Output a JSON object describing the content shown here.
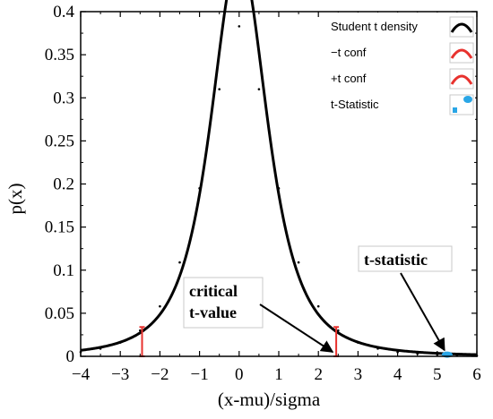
{
  "chart_data": {
    "type": "line",
    "title": "",
    "xlabel": "(x-mu)/sigma",
    "ylabel": "p(x)",
    "xlim": [
      -4,
      6
    ],
    "ylim": [
      0,
      0.4
    ],
    "grid": false,
    "xticks": [
      -4,
      -3,
      -2,
      -1,
      0,
      1,
      2,
      3,
      4,
      5,
      6
    ],
    "xtick_labels": [
      "−4",
      "−3",
      "−2",
      "−1",
      "0",
      "1",
      "2",
      "3",
      "4",
      "5",
      "6"
    ],
    "yticks": [
      0,
      0.05,
      0.1,
      0.15,
      0.2,
      0.25,
      0.3,
      0.35,
      0.4
    ],
    "ytick_labels": [
      "0",
      "0.05",
      "0.1",
      "0.15",
      "0.2",
      "0.25",
      "0.3",
      "0.35",
      "0.4"
    ],
    "series": [
      {
        "name": "Student t  density",
        "color": "#000000",
        "x": [
          -4,
          -3.5,
          -3,
          -2.5,
          -2,
          -1.5,
          -1,
          -0.5,
          0,
          0.5,
          1,
          1.5,
          2,
          2.5,
          3,
          3.5,
          4,
          4.5,
          5,
          5.5,
          6
        ],
        "y": [
          0.005,
          0.009,
          0.016,
          0.03,
          0.058,
          0.109,
          0.195,
          0.31,
          0.383,
          0.31,
          0.195,
          0.109,
          0.058,
          0.03,
          0.016,
          0.009,
          0.005,
          0.003,
          0.002,
          0.001,
          0.0007
        ]
      }
    ],
    "critical_lines": [
      {
        "name": "−t conf",
        "x": -2.45,
        "y": 0.034,
        "color": "#e8322e"
      },
      {
        "name": "+t conf",
        "x": 2.45,
        "y": 0.034,
        "color": "#e8322e"
      }
    ],
    "points": [
      {
        "name": "t-Statistic",
        "x": 5.25,
        "y": 0.002,
        "color": "#2aa6e6"
      }
    ],
    "legend": {
      "position": "top-right",
      "entries": [
        {
          "label": "Student t  density",
          "color": "#000000",
          "kind": "line"
        },
        {
          "label": "−t conf",
          "color": "#e8322e",
          "kind": "line"
        },
        {
          "label": "+t conf",
          "color": "#e8322e",
          "kind": "line"
        },
        {
          "label": "t-Statistic",
          "color": "#2aa6e6",
          "kind": "marker"
        }
      ]
    },
    "annotations": [
      {
        "lines": [
          "critical",
          "t-value"
        ],
        "target_x": 2.45,
        "target_y": 0.003
      },
      {
        "lines": [
          "t-statistic"
        ],
        "target_x": 5.25,
        "target_y": 0.003
      }
    ]
  }
}
